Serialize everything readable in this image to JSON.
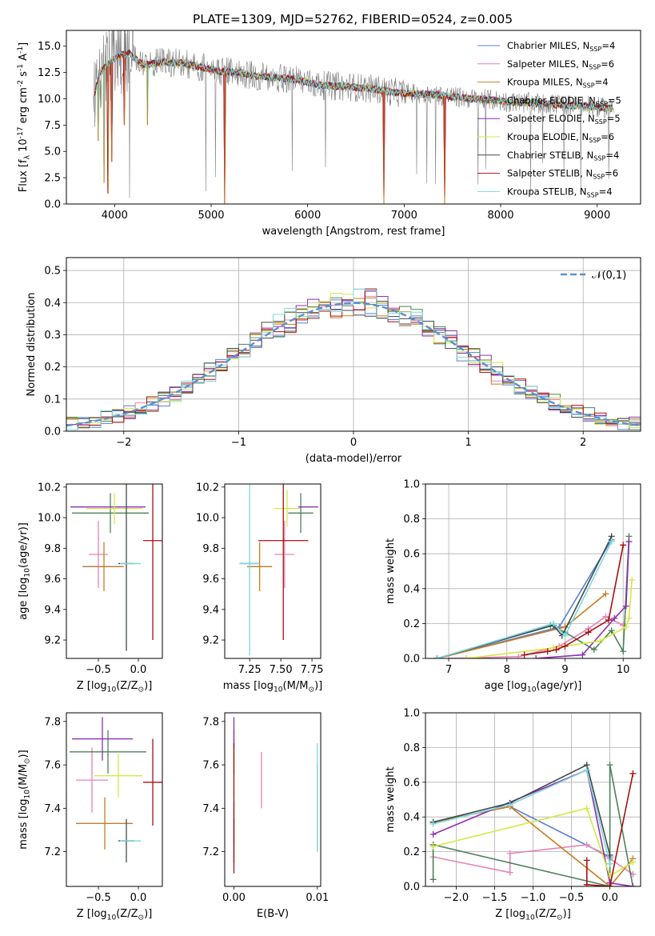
{
  "figure_title": "PLATE=1309, MJD=52762, FIBERID=0524, z=0.005",
  "models": [
    {
      "name": "Chabrier MILES, N$_{SSP}$=4",
      "short": "Chabrier MILES",
      "nssp": "4",
      "color": "#5d7fd6"
    },
    {
      "name": "Salpeter MILES, N$_{SSP}$=6",
      "short": "Salpeter MILES",
      "nssp": "6",
      "color": "#e484b8"
    },
    {
      "name": "Kroupa MILES, N$_{SSP}$=4",
      "short": "Kroupa MILES",
      "nssp": "4",
      "color": "#c77c20"
    },
    {
      "name": "Chabrier ELODIE, N$_{SSP}$=5",
      "short": "Chabrier ELODIE",
      "nssp": "5",
      "color": "#4e8159"
    },
    {
      "name": "Salpeter ELODIE, N$_{SSP}$=5",
      "short": "Salpeter ELODIE",
      "nssp": "5",
      "color": "#8d2fb1"
    },
    {
      "name": "Kroupa ELODIE, N$_{SSP}$=6",
      "short": "Kroupa ELODIE",
      "nssp": "6",
      "color": "#d4e745"
    },
    {
      "name": "Chabrier STELIB, N$_{SSP}$=4",
      "short": "Chabrier STELIB",
      "nssp": "4",
      "color": "#404a4b"
    },
    {
      "name": "Salpeter STELIB, N$_{SSP}$=6",
      "short": "Salpeter STELIB",
      "nssp": "6",
      "color": "#a81010"
    },
    {
      "name": "Kroupa STELIB, N$_{SSP}$=4",
      "short": "Kroupa STELIB",
      "nssp": "4",
      "color": "#7dd8dc"
    }
  ],
  "chart_data": [
    {
      "id": "spectrum",
      "type": "line",
      "xlabel": "wavelength [Angstrom, rest frame]",
      "ylabel": "Flux [f$_\\lambda$ 10$^{-17}$ erg cm$^{-2}$ s$^{-1}$ A$^{-1}$]",
      "xlim": [
        3500,
        9450
      ],
      "ylim": [
        0,
        16.5
      ],
      "xticks": [
        4000,
        5000,
        6000,
        7000,
        8000,
        9000
      ],
      "yticks": [
        0.0,
        2.5,
        5.0,
        7.5,
        10.0,
        12.5,
        15.0
      ],
      "data_color": "#808080",
      "model_continuum": {
        "x": [
          3790,
          3850,
          3950,
          4050,
          4150,
          4300,
          4500,
          4700,
          4900,
          5100,
          5300,
          5500,
          5700,
          5900,
          6100,
          6300,
          6500,
          6700,
          6900,
          7100,
          7300,
          7500,
          7700,
          7900,
          8100,
          8300,
          8500,
          8700,
          8900,
          9100
        ],
        "y": [
          10.5,
          12.5,
          13.5,
          14.2,
          14.3,
          13.2,
          13.5,
          13.4,
          13.0,
          12.6,
          12.5,
          12.1,
          12.0,
          11.8,
          11.3,
          11.2,
          11.1,
          10.9,
          10.6,
          10.5,
          10.4,
          10.2,
          10.0,
          9.9,
          9.7,
          9.6,
          9.5,
          9.4,
          9.3,
          9.1
        ]
      },
      "model_absorption_spikes": [
        {
          "x": 3830,
          "y": 6.0
        },
        {
          "x": 3890,
          "y": 2.0
        },
        {
          "x": 3934,
          "y": 1.0
        },
        {
          "x": 3970,
          "y": 4.0
        },
        {
          "x": 4102,
          "y": 7.5
        },
        {
          "x": 4340,
          "y": 7.5
        },
        {
          "x": 5140,
          "y": 0.0
        },
        {
          "x": 6790,
          "y": 0.0
        },
        {
          "x": 7420,
          "y": 0.0
        }
      ]
    },
    {
      "id": "residual-histogram",
      "type": "bar",
      "xlabel": "(data-model)/error",
      "ylabel": "Normed distribution",
      "xlim": [
        -2.5,
        2.5
      ],
      "ylim": [
        0,
        0.54
      ],
      "xticks": [
        -2,
        -1,
        0,
        1,
        2
      ],
      "yticks": [
        0.0,
        0.1,
        0.2,
        0.3,
        0.4,
        0.5
      ],
      "bin_edges": [
        -2.5,
        -2.4,
        -2.3,
        -2.2,
        -2.1,
        -2.0,
        -1.9,
        -1.8,
        -1.7,
        -1.6,
        -1.5,
        -1.4,
        -1.3,
        -1.2,
        -1.1,
        -1.0,
        -0.9,
        -0.8,
        -0.7,
        -0.6,
        -0.5,
        -0.4,
        -0.3,
        -0.2,
        -0.1,
        0.0,
        0.1,
        0.2,
        0.3,
        0.4,
        0.5,
        0.6,
        0.7,
        0.8,
        0.9,
        1.0,
        1.1,
        1.2,
        1.3,
        1.4,
        1.5,
        1.6,
        1.7,
        1.8,
        1.9,
        2.0,
        2.1,
        2.2,
        2.3,
        2.4,
        2.5
      ],
      "reference_curve": {
        "name": "$\\mathcal{N}(0,1)$",
        "style": "dashed",
        "color": "#5b8fd4"
      },
      "legend": {
        "position": "top-right"
      }
    },
    {
      "id": "age-vs-Z",
      "type": "scatter",
      "xlabel": "Z [log$_{10}$(Z/Z$_\\odot$)]",
      "ylabel": "age  [log$_{10}$(age/yr)]",
      "xlim": [
        -0.9,
        0.3
      ],
      "ylim": [
        9.08,
        10.22
      ],
      "xticks": [
        -0.5,
        0.0
      ],
      "yticks": [
        9.2,
        9.4,
        9.6,
        9.8,
        10.0,
        10.2
      ],
      "points": [
        {
          "model": 0,
          "x": -0.45,
          "xerr": 0.25,
          "y": 9.68,
          "yerr": 0.0
        },
        {
          "model": 1,
          "x": -0.5,
          "xerr": 0.12,
          "y": 9.76,
          "yerr": 0.22
        },
        {
          "model": 2,
          "x": -0.43,
          "xerr": 0.25,
          "y": 9.68,
          "yerr": 0.16
        },
        {
          "model": 3,
          "x": -0.35,
          "xerr": 0.48,
          "y": 10.03,
          "yerr": 0.13
        },
        {
          "model": 4,
          "x": -0.38,
          "xerr": 0.47,
          "y": 10.07,
          "yerr": 0.0
        },
        {
          "model": 5,
          "x": -0.3,
          "xerr": 0.35,
          "y": 10.06,
          "yerr": 0.1
        },
        {
          "model": 6,
          "x": -0.15,
          "xerr": 0.1,
          "y": 9.7,
          "yerr": 0.57
        },
        {
          "model": 7,
          "x": 0.18,
          "xerr": 0.12,
          "y": 9.85,
          "yerr": 0.65
        },
        {
          "model": 8,
          "x": -0.1,
          "xerr": 0.13,
          "y": 9.7,
          "yerr": 0.0
        }
      ]
    },
    {
      "id": "age-vs-mass",
      "type": "scatter",
      "xlabel": "mass [log$_{10}$(M/M$_\\odot$)]",
      "ylabel": "",
      "xlim": [
        7.05,
        7.82
      ],
      "ylim": [
        9.08,
        10.22
      ],
      "xticks": [
        7.25,
        7.5,
        7.75
      ],
      "yticks": [
        9.2,
        9.4,
        9.6,
        9.8,
        10.0,
        10.2
      ],
      "points": [
        {
          "model": 0,
          "x": 7.33,
          "xerr": 0.1,
          "y": 9.68,
          "yerr": 0.0
        },
        {
          "model": 1,
          "x": 7.53,
          "xerr": 0.08,
          "y": 9.76,
          "yerr": 0.22
        },
        {
          "model": 2,
          "x": 7.33,
          "xerr": 0.1,
          "y": 9.68,
          "yerr": 0.16
        },
        {
          "model": 3,
          "x": 7.66,
          "xerr": 0.1,
          "y": 10.03,
          "yerr": 0.13
        },
        {
          "model": 4,
          "x": 7.72,
          "xerr": 0.08,
          "y": 10.07,
          "yerr": 0.0
        },
        {
          "model": 5,
          "x": 7.55,
          "xerr": 0.1,
          "y": 10.06,
          "yerr": 0.12
        },
        {
          "model": 6,
          "x": 7.25,
          "xerr": 0.08,
          "y": 9.7,
          "yerr": 0.0
        },
        {
          "model": 7,
          "x": 7.52,
          "xerr": 0.2,
          "y": 9.85,
          "yerr": 0.65
        },
        {
          "model": 8,
          "x": 7.25,
          "xerr": 0.08,
          "y": 9.7,
          "yerr": 0.6
        }
      ]
    },
    {
      "id": "weight-vs-age",
      "type": "line",
      "xlabel": "age  [log$_{10}$(age/yr)]",
      "ylabel": "mass weight",
      "xlim": [
        6.6,
        10.3
      ],
      "ylim": [
        0,
        1.0
      ],
      "xticks": [
        7,
        8,
        9,
        10
      ],
      "yticks": [
        0.0,
        0.2,
        0.4,
        0.6,
        0.8,
        1.0
      ],
      "series": [
        {
          "model": 0,
          "x": [
            6.8,
            8.9,
            9.8
          ],
          "y": [
            0.0,
            0.18,
            0.68
          ]
        },
        {
          "model": 1,
          "x": [
            7.0,
            8.2,
            8.9,
            9.4,
            9.7,
            10.0
          ],
          "y": [
            0.0,
            0.01,
            0.07,
            0.17,
            0.24,
            0.19
          ]
        },
        {
          "model": 2,
          "x": [
            6.8,
            9.0,
            9.7
          ],
          "y": [
            0.0,
            0.18,
            0.37
          ]
        },
        {
          "model": 3,
          "x": [
            6.8,
            8.75,
            9.0,
            9.5,
            9.8,
            10.0,
            10.1
          ],
          "y": [
            0.0,
            0.19,
            0.15,
            0.05,
            0.16,
            0.04,
            0.7
          ]
        },
        {
          "model": 4,
          "x": [
            8.5,
            9.3,
            9.85,
            10.05,
            10.1
          ],
          "y": [
            0.0,
            0.02,
            0.23,
            0.3,
            0.67
          ]
        },
        {
          "model": 5,
          "x": [
            7.3,
            8.8,
            9.6,
            10.05,
            10.1,
            10.15
          ],
          "y": [
            0.0,
            0.06,
            0.1,
            0.18,
            0.23,
            0.45
          ]
        },
        {
          "model": 6,
          "x": [
            6.8,
            8.8,
            8.95,
            9.8
          ],
          "y": [
            0.0,
            0.19,
            0.13,
            0.7
          ]
        },
        {
          "model": 7,
          "x": [
            8.3,
            8.7,
            8.85,
            9.0,
            9.4,
            9.75,
            10.0
          ],
          "y": [
            0.02,
            0.04,
            0.05,
            0.07,
            0.15,
            0.22,
            0.65
          ]
        },
        {
          "model": 8,
          "x": [
            6.8,
            8.8,
            9.0,
            9.8
          ],
          "y": [
            0.0,
            0.2,
            0.13,
            0.67
          ]
        }
      ]
    },
    {
      "id": "mass-vs-Z",
      "type": "scatter",
      "xlabel": "Z [log$_{10}$(Z/Z$_\\odot$)]",
      "ylabel": "mass [log$_{10}$(M/M$_\\odot$)]",
      "xlim": [
        -0.9,
        0.3
      ],
      "ylim": [
        7.04,
        7.84
      ],
      "xticks": [
        -0.5,
        0.0
      ],
      "yticks": [
        7.2,
        7.4,
        7.6,
        7.8
      ],
      "points": [
        {
          "model": 0,
          "x": -0.43,
          "xerr": 0.35,
          "y": 7.33,
          "yerr": 0.0
        },
        {
          "model": 1,
          "x": -0.58,
          "xerr": 0.2,
          "y": 7.53,
          "yerr": 0.15
        },
        {
          "model": 2,
          "x": -0.42,
          "xerr": 0.35,
          "y": 7.33,
          "yerr": 0.12
        },
        {
          "model": 3,
          "x": -0.38,
          "xerr": 0.48,
          "y": 7.66,
          "yerr": 0.1
        },
        {
          "model": 4,
          "x": -0.45,
          "xerr": 0.38,
          "y": 7.72,
          "yerr": 0.1
        },
        {
          "model": 5,
          "x": -0.25,
          "xerr": 0.3,
          "y": 7.55,
          "yerr": 0.1
        },
        {
          "model": 6,
          "x": -0.15,
          "xerr": 0.1,
          "y": 7.25,
          "yerr": 0.1
        },
        {
          "model": 7,
          "x": 0.18,
          "xerr": 0.12,
          "y": 7.52,
          "yerr": 0.2
        },
        {
          "model": 8,
          "x": -0.1,
          "xerr": 0.13,
          "y": 7.25,
          "yerr": 0.0
        }
      ]
    },
    {
      "id": "mass-vs-EBV",
      "type": "scatter",
      "xlabel": "E(B-V)",
      "ylabel": "",
      "xlim": [
        -0.0011,
        0.0104
      ],
      "ylim": [
        7.04,
        7.84
      ],
      "xticks": [
        0.0,
        0.01
      ],
      "xticklabels": [
        "0.00",
        "0.01"
      ],
      "yticks": [
        7.2,
        7.4,
        7.6,
        7.8
      ],
      "points": [
        {
          "model": 0,
          "x": 0.0,
          "xerr": 0.0,
          "y": 7.33,
          "yerr": 0.1
        },
        {
          "model": 1,
          "x": 0.0033,
          "xerr": 0.0,
          "y": 7.53,
          "yerr": 0.13
        },
        {
          "model": 2,
          "x": 0.01,
          "xerr": 0.0,
          "y": 7.4,
          "yerr": 0.2
        },
        {
          "model": 3,
          "x": 0.0,
          "xerr": 0.0,
          "y": 7.66,
          "yerr": 0.1
        },
        {
          "model": 4,
          "x": 0.0,
          "xerr": 0.0,
          "y": 7.75,
          "yerr": 0.07
        },
        {
          "model": 5,
          "x": 0.0,
          "xerr": 0.0,
          "y": 7.55,
          "yerr": 0.1
        },
        {
          "model": 6,
          "x": 0.0,
          "xerr": 0.0,
          "y": 7.25,
          "yerr": 0.1
        },
        {
          "model": 7,
          "x": 0.0,
          "xerr": 0.0,
          "y": 7.4,
          "yerr": 0.3
        },
        {
          "model": 8,
          "x": 0.01,
          "xerr": 0.0,
          "y": 7.45,
          "yerr": 0.25
        }
      ]
    },
    {
      "id": "weight-vs-Z",
      "type": "line",
      "xlabel": "Z [log$_{10}$(Z/Z$_\\odot$)]",
      "ylabel": "mass weight",
      "xlim": [
        -2.4,
        0.4
      ],
      "ylim": [
        0,
        1.0
      ],
      "xticks": [
        -2.0,
        -1.5,
        -1.0,
        -0.5,
        0.0
      ],
      "yticks": [
        0.0,
        0.2,
        0.4,
        0.6,
        0.8,
        1.0
      ],
      "series": [
        {
          "model": 0,
          "x": [
            -2.3,
            -1.3,
            0.0
          ],
          "y": [
            0.37,
            0.46,
            0.17
          ]
        },
        {
          "model": 1,
          "x": [
            -2.3,
            -1.3,
            -1.3,
            -0.3,
            0.0,
            0.3
          ],
          "y": [
            0.17,
            0.08,
            0.19,
            0.24,
            0.16,
            0.07
          ]
        },
        {
          "model": 2,
          "x": [
            -2.3,
            -1.3,
            0.0,
            0.3
          ],
          "y": [
            0.37,
            0.46,
            0.0,
            0.16
          ]
        },
        {
          "model": 3,
          "x": [
            -2.3,
            -2.3,
            0.0,
            0.0,
            0.3
          ],
          "y": [
            0.04,
            0.24,
            0.0,
            0.7,
            0.0
          ]
        },
        {
          "model": 4,
          "x": [
            -2.3,
            -0.3,
            0.0,
            0.3
          ],
          "y": [
            0.3,
            0.67,
            0.02,
            0.0
          ]
        },
        {
          "model": 5,
          "x": [
            -2.3,
            -0.3,
            0.0,
            0.3
          ],
          "y": [
            0.23,
            0.45,
            0.06,
            0.14
          ]
        },
        {
          "model": 6,
          "x": [
            -2.3,
            -1.3,
            -0.3,
            0.0
          ],
          "y": [
            0.37,
            0.48,
            0.7,
            0.18
          ]
        },
        {
          "model": 7,
          "x": [
            -0.3,
            -0.3,
            0.0,
            0.3
          ],
          "y": [
            0.15,
            0.01,
            0.0,
            0.65
          ]
        },
        {
          "model": 8,
          "x": [
            -2.3,
            -1.3,
            -0.3,
            0.0
          ],
          "y": [
            0.36,
            0.47,
            0.67,
            0.13
          ]
        }
      ]
    }
  ]
}
